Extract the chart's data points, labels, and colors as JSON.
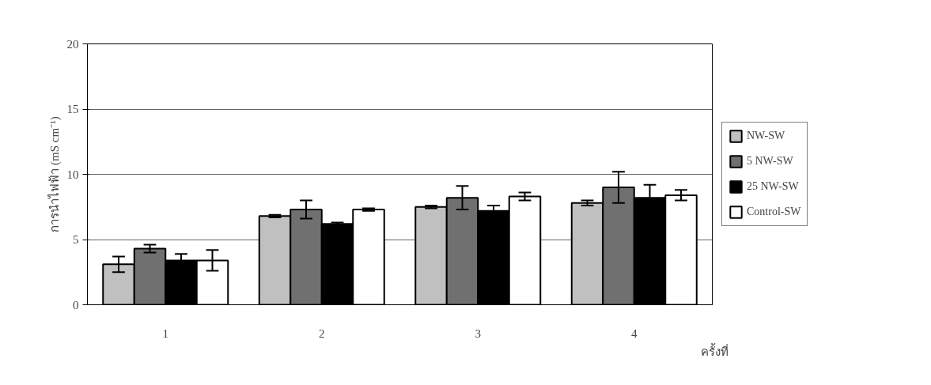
{
  "chart_data": {
    "type": "bar",
    "ylabel": "การนำไฟฟ้า (mS cm⁻¹)",
    "xlabel": "ครั้งที่",
    "categories": [
      "1",
      "2",
      "3",
      "4"
    ],
    "series": [
      {
        "name": "NW-SW",
        "color": "#c0c0c0",
        "values": [
          3.1,
          6.8,
          7.5,
          7.8
        ],
        "errors": [
          0.6,
          0.1,
          0.1,
          0.2
        ]
      },
      {
        "name": "5 NW-SW",
        "color": "#707070",
        "values": [
          4.3,
          7.3,
          8.2,
          9.0
        ],
        "errors": [
          0.3,
          0.7,
          0.9,
          1.2
        ]
      },
      {
        "name": "25 NW-SW",
        "color": "#000000",
        "values": [
          3.4,
          6.2,
          7.2,
          8.2
        ],
        "errors": [
          0.5,
          0.1,
          0.4,
          1.0
        ]
      },
      {
        "name": "Control-SW",
        "color": "#ffffff",
        "values": [
          3.4,
          7.3,
          8.3,
          8.4
        ],
        "errors": [
          0.8,
          0.1,
          0.3,
          0.4
        ]
      }
    ],
    "ylim": [
      0,
      20
    ],
    "yticks": [
      0,
      5,
      10,
      15,
      20
    ],
    "grid": "y",
    "legend": "right"
  }
}
